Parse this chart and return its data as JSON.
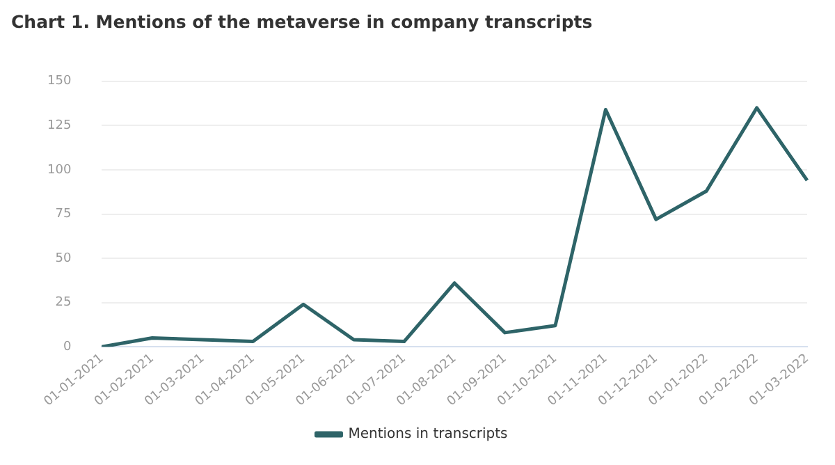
{
  "chart_data": {
    "type": "line",
    "title": "Chart 1. Mentions of the metaverse in company transcripts",
    "categories": [
      "01-01-2021",
      "01-02-2021",
      "01-03-2021",
      "01-04-2021",
      "01-05-2021",
      "01-06-2021",
      "01-07-2021",
      "01-08-2021",
      "01-09-2021",
      "01-10-2021",
      "01-11-2021",
      "01-12-2021",
      "01-01-2022",
      "01-02-2022",
      "01-03-2022"
    ],
    "series": [
      {
        "name": "Mentions in transcripts",
        "color": "#2e6468",
        "values": [
          0,
          5,
          4,
          3,
          24,
          4,
          3,
          36,
          8,
          12,
          134,
          72,
          88,
          135,
          94
        ]
      }
    ],
    "ylim": [
      0,
      150
    ],
    "yticks": [
      0,
      25,
      50,
      75,
      100,
      125,
      150
    ],
    "grid": "y",
    "legend": "bottom",
    "marker": "none",
    "line_style": "solid"
  }
}
